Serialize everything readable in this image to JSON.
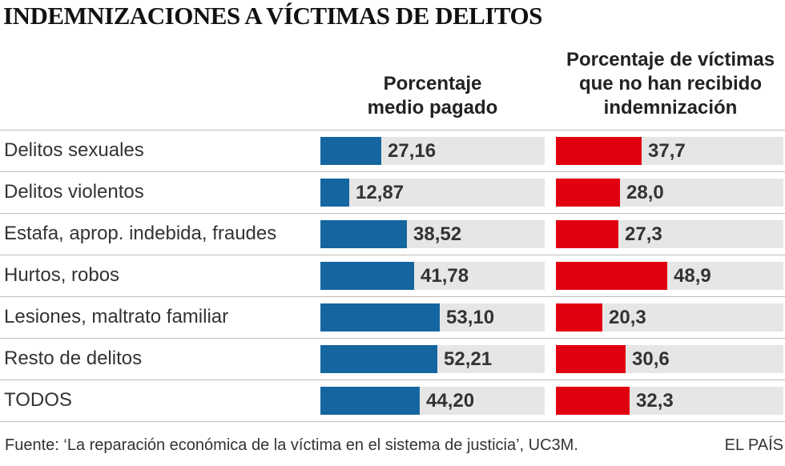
{
  "title": "INDEMNIZACIONES A VÍCTIMAS DE DELITOS",
  "columns": {
    "left_lines": [
      "Porcentaje",
      "medio pagado"
    ],
    "right_lines": [
      "Porcentaje de víctimas",
      "que no han recibido",
      "indemnización"
    ]
  },
  "colors": {
    "paid": "#1566a0",
    "unpaid": "#e1000f",
    "track": "#e6e6e6"
  },
  "chart_data": {
    "type": "bar",
    "orientation": "horizontal",
    "categories": [
      "Delitos sexuales",
      "Delitos violentos",
      "Estafa, aprop. indebida, fraudes",
      "Hurtos, robos",
      "Lesiones, maltrato familiar",
      "Resto de delitos",
      "TODOS"
    ],
    "series": [
      {
        "name": "Porcentaje medio pagado",
        "values": [
          27.16,
          12.87,
          38.52,
          41.78,
          53.1,
          52.21,
          44.2
        ],
        "labels": [
          "27,16",
          "12,87",
          "38,52",
          "41,78",
          "53,10",
          "52,21",
          "44,20"
        ]
      },
      {
        "name": "Porcentaje de víctimas que no han recibido indemnización",
        "values": [
          37.7,
          28.0,
          27.3,
          48.9,
          20.3,
          30.6,
          32.3
        ],
        "labels": [
          "37,7",
          "28,0",
          "27,3",
          "48,9",
          "20,3",
          "30,6",
          "32,3"
        ]
      }
    ],
    "xlim": [
      0,
      100
    ]
  },
  "footer": {
    "source": "Fuente: ‘La reparación económica de la víctima en el sistema de justicia’, UC3M.",
    "brand": "EL PAÍS"
  }
}
